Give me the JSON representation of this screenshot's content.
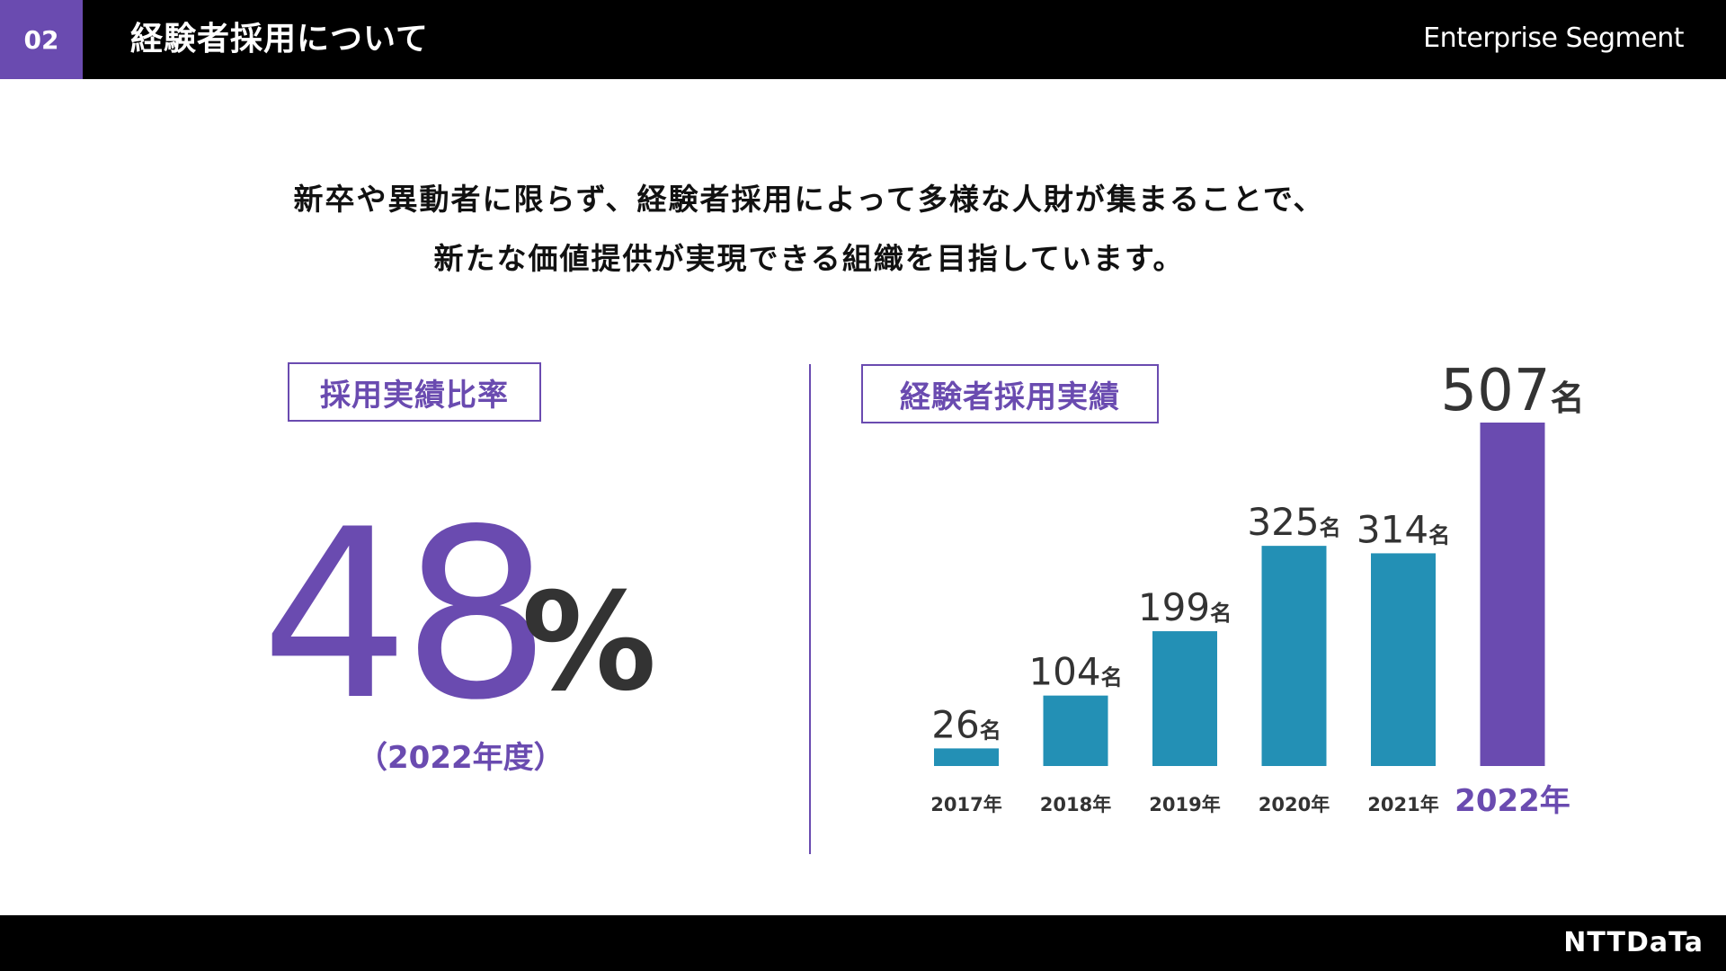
{
  "header": {
    "section_number": "02",
    "title": "経験者採用について",
    "segment": "Enterprise Segment"
  },
  "lead": {
    "line1": "新卒や異動者に限らず、経験者採用によって多様な人財が集まることで、",
    "line2": "新たな価値提供が実現できる組織を目指しています。"
  },
  "ratio": {
    "label": "採用実績比率",
    "value": "48",
    "unit": "%",
    "year_note": "（2022年度）"
  },
  "results_label": "経験者採用実績",
  "chart_data": {
    "type": "bar",
    "title": "経験者採用実績",
    "categories": [
      "2017年",
      "2018年",
      "2019年",
      "2020年",
      "2021年",
      "2022年"
    ],
    "values": [
      26,
      104,
      199,
      325,
      314,
      507
    ],
    "value_suffix": "名",
    "highlight_index": 5,
    "ylim": [
      0,
      507
    ],
    "colors": {
      "default": "#2390b5",
      "highlight": "#6a4bb0"
    }
  },
  "footer": {
    "logo": "NTTDaTa"
  }
}
